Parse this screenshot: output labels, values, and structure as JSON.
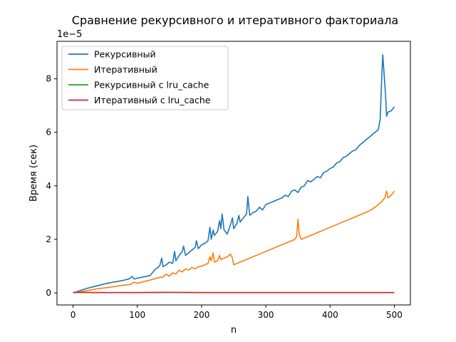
{
  "chart_data": {
    "type": "line",
    "title": "Сравнение рекурсивного и итеративного факториала",
    "xlabel": "n",
    "ylabel": "Время (сек)",
    "y_scale_label": "1e−5",
    "xlim": [
      -25,
      525
    ],
    "ylim": [
      -0.45,
      9.4
    ],
    "x_ticks": [
      0,
      100,
      200,
      300,
      400,
      500
    ],
    "y_ticks": [
      0,
      2,
      4,
      6,
      8
    ],
    "legend_position": "top-left",
    "grid": false,
    "series": [
      {
        "name": "Рекурсивный",
        "color": "#1f77b4",
        "points": [
          [
            0,
            0.0
          ],
          [
            10,
            0.08
          ],
          [
            20,
            0.16
          ],
          [
            30,
            0.22
          ],
          [
            40,
            0.28
          ],
          [
            50,
            0.34
          ],
          [
            60,
            0.39
          ],
          [
            70,
            0.43
          ],
          [
            80,
            0.48
          ],
          [
            88,
            0.53
          ],
          [
            92,
            0.62
          ],
          [
            95,
            0.52
          ],
          [
            100,
            0.55
          ],
          [
            110,
            0.6
          ],
          [
            120,
            0.65
          ],
          [
            125,
            0.8
          ],
          [
            128,
            0.88
          ],
          [
            132,
            0.95
          ],
          [
            135,
            1.02
          ],
          [
            138,
            1.3
          ],
          [
            140,
            0.98
          ],
          [
            145,
            1.05
          ],
          [
            150,
            1.15
          ],
          [
            155,
            1.1
          ],
          [
            158,
            1.55
          ],
          [
            160,
            1.2
          ],
          [
            165,
            1.4
          ],
          [
            170,
            1.55
          ],
          [
            172,
            1.75
          ],
          [
            175,
            1.4
          ],
          [
            180,
            1.5
          ],
          [
            185,
            1.6
          ],
          [
            190,
            1.7
          ],
          [
            192,
            1.95
          ],
          [
            195,
            1.65
          ],
          [
            200,
            1.8
          ],
          [
            205,
            1.85
          ],
          [
            210,
            1.95
          ],
          [
            213,
            2.45
          ],
          [
            215,
            2.0
          ],
          [
            218,
            2.35
          ],
          [
            220,
            2.15
          ],
          [
            225,
            2.3
          ],
          [
            228,
            2.7
          ],
          [
            230,
            2.4
          ],
          [
            232,
            2.95
          ],
          [
            235,
            2.35
          ],
          [
            240,
            2.2
          ],
          [
            245,
            2.55
          ],
          [
            248,
            2.8
          ],
          [
            250,
            2.4
          ],
          [
            255,
            2.6
          ],
          [
            258,
            2.9
          ],
          [
            260,
            2.65
          ],
          [
            265,
            2.8
          ],
          [
            270,
            2.95
          ],
          [
            272,
            3.6
          ],
          [
            275,
            2.9
          ],
          [
            280,
            3.0
          ],
          [
            285,
            3.05
          ],
          [
            290,
            3.2
          ],
          [
            295,
            3.1
          ],
          [
            300,
            3.3
          ],
          [
            305,
            3.35
          ],
          [
            310,
            3.4
          ],
          [
            315,
            3.45
          ],
          [
            320,
            3.5
          ],
          [
            325,
            3.55
          ],
          [
            330,
            3.65
          ],
          [
            335,
            3.6
          ],
          [
            340,
            3.8
          ],
          [
            345,
            3.85
          ],
          [
            350,
            3.75
          ],
          [
            355,
            3.95
          ],
          [
            360,
            4.0
          ],
          [
            365,
            4.2
          ],
          [
            370,
            4.15
          ],
          [
            375,
            4.25
          ],
          [
            380,
            4.35
          ],
          [
            385,
            4.3
          ],
          [
            390,
            4.5
          ],
          [
            395,
            4.55
          ],
          [
            400,
            4.65
          ],
          [
            405,
            4.7
          ],
          [
            410,
            4.85
          ],
          [
            415,
            4.9
          ],
          [
            420,
            5.05
          ],
          [
            425,
            5.1
          ],
          [
            430,
            5.2
          ],
          [
            435,
            5.3
          ],
          [
            440,
            5.35
          ],
          [
            445,
            5.5
          ],
          [
            450,
            5.6
          ],
          [
            455,
            5.7
          ],
          [
            460,
            5.8
          ],
          [
            465,
            5.9
          ],
          [
            470,
            6.0
          ],
          [
            475,
            6.1
          ],
          [
            478,
            6.5
          ],
          [
            480,
            7.8
          ],
          [
            482,
            8.9
          ],
          [
            484,
            8.2
          ],
          [
            486,
            7.5
          ],
          [
            488,
            6.6
          ],
          [
            490,
            6.75
          ],
          [
            495,
            6.8
          ],
          [
            500,
            6.95
          ]
        ]
      },
      {
        "name": "Итеративный",
        "color": "#ff7f0e",
        "points": [
          [
            0,
            0.0
          ],
          [
            10,
            0.04
          ],
          [
            20,
            0.08
          ],
          [
            30,
            0.12
          ],
          [
            40,
            0.16
          ],
          [
            50,
            0.19
          ],
          [
            60,
            0.22
          ],
          [
            70,
            0.26
          ],
          [
            80,
            0.29
          ],
          [
            90,
            0.32
          ],
          [
            95,
            0.4
          ],
          [
            100,
            0.36
          ],
          [
            110,
            0.42
          ],
          [
            120,
            0.48
          ],
          [
            130,
            0.55
          ],
          [
            140,
            0.6
          ],
          [
            145,
            0.7
          ],
          [
            150,
            0.62
          ],
          [
            155,
            0.75
          ],
          [
            160,
            0.7
          ],
          [
            165,
            0.85
          ],
          [
            170,
            0.78
          ],
          [
            175,
            0.9
          ],
          [
            180,
            0.85
          ],
          [
            185,
            0.95
          ],
          [
            190,
            0.9
          ],
          [
            195,
            0.98
          ],
          [
            200,
            1.0
          ],
          [
            205,
            1.05
          ],
          [
            210,
            1.1
          ],
          [
            213,
            1.35
          ],
          [
            215,
            1.2
          ],
          [
            218,
            1.5
          ],
          [
            220,
            1.15
          ],
          [
            225,
            1.2
          ],
          [
            228,
            1.4
          ],
          [
            230,
            1.25
          ],
          [
            235,
            1.3
          ],
          [
            240,
            1.35
          ],
          [
            245,
            1.45
          ],
          [
            248,
            1.3
          ],
          [
            250,
            1.05
          ],
          [
            255,
            1.1
          ],
          [
            260,
            1.15
          ],
          [
            265,
            1.2
          ],
          [
            270,
            1.25
          ],
          [
            275,
            1.3
          ],
          [
            280,
            1.35
          ],
          [
            285,
            1.4
          ],
          [
            290,
            1.45
          ],
          [
            295,
            1.5
          ],
          [
            300,
            1.55
          ],
          [
            305,
            1.6
          ],
          [
            310,
            1.65
          ],
          [
            315,
            1.7
          ],
          [
            320,
            1.75
          ],
          [
            325,
            1.8
          ],
          [
            330,
            1.85
          ],
          [
            335,
            1.9
          ],
          [
            340,
            1.95
          ],
          [
            345,
            2.0
          ],
          [
            348,
            2.1
          ],
          [
            350,
            2.75
          ],
          [
            352,
            2.2
          ],
          [
            355,
            2.0
          ],
          [
            360,
            2.05
          ],
          [
            370,
            2.15
          ],
          [
            380,
            2.25
          ],
          [
            390,
            2.35
          ],
          [
            400,
            2.45
          ],
          [
            410,
            2.55
          ],
          [
            420,
            2.65
          ],
          [
            430,
            2.75
          ],
          [
            440,
            2.85
          ],
          [
            450,
            2.95
          ],
          [
            460,
            3.05
          ],
          [
            470,
            3.2
          ],
          [
            475,
            3.3
          ],
          [
            480,
            3.4
          ],
          [
            485,
            3.55
          ],
          [
            488,
            3.8
          ],
          [
            490,
            3.55
          ],
          [
            495,
            3.65
          ],
          [
            500,
            3.8
          ]
        ]
      },
      {
        "name": "Рекурсивный с lru_cache",
        "color": "#2ca02c",
        "points": [
          [
            0,
            0.02
          ],
          [
            50,
            0.01
          ],
          [
            100,
            0.01
          ],
          [
            150,
            0.02
          ],
          [
            200,
            0.01
          ],
          [
            250,
            0.01
          ],
          [
            300,
            0.01
          ],
          [
            350,
            0.01
          ],
          [
            400,
            0.01
          ],
          [
            450,
            0.01
          ],
          [
            500,
            0.01
          ]
        ]
      },
      {
        "name": "Итеративный с lru_cache",
        "color": "#d62728",
        "points": [
          [
            0,
            0.02
          ],
          [
            50,
            0.01
          ],
          [
            100,
            0.01
          ],
          [
            150,
            0.02
          ],
          [
            200,
            0.01
          ],
          [
            250,
            0.01
          ],
          [
            300,
            0.01
          ],
          [
            350,
            0.01
          ],
          [
            400,
            0.01
          ],
          [
            450,
            0.01
          ],
          [
            500,
            0.01
          ]
        ]
      }
    ]
  }
}
